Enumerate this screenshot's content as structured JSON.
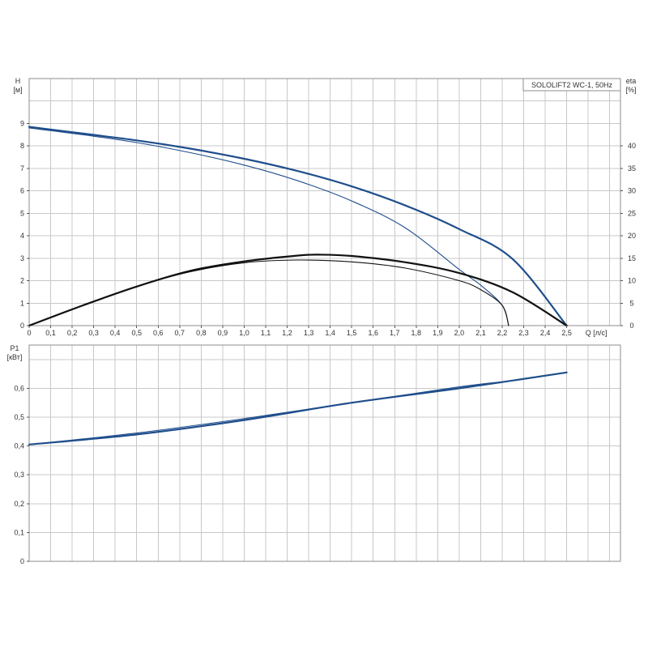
{
  "chart_data": [
    {
      "type": "line",
      "title": "SOLOLIFT2 WC-1, 50Hz",
      "xlabel": "Q [л/с]",
      "ylabel_left": "H\n[м]",
      "ylabel_right": "eta\n[%]",
      "xlim": [
        0,
        2.75
      ],
      "ylim_left": [
        0,
        11
      ],
      "ylim_right": [
        0,
        55
      ],
      "grid": true,
      "x_ticks": [
        "0",
        "0,1",
        "0,2",
        "0,3",
        "0,4",
        "0,5",
        "0,6",
        "0,7",
        "0,8",
        "0,9",
        "1,0",
        "1,1",
        "1,2",
        "1,3",
        "1,4",
        "1,5",
        "1,6",
        "1,7",
        "1,8",
        "1,9",
        "2,0",
        "2,1",
        "2,2",
        "2,3",
        "2,4",
        "2,5"
      ],
      "y_ticks_left": [
        "0",
        "1",
        "2",
        "3",
        "4",
        "5",
        "6",
        "7",
        "8",
        "9"
      ],
      "y_ticks_right": [
        "0",
        "5",
        "10",
        "15",
        "20",
        "25",
        "30",
        "35",
        "40"
      ],
      "series": [
        {
          "axis": "left",
          "color": "#1f4e8c",
          "width": 2.2,
          "x": [
            0,
            0.25,
            0.5,
            0.75,
            1.0,
            1.25,
            1.5,
            1.75,
            2.0,
            2.25,
            2.5
          ],
          "y": [
            8.85,
            8.55,
            8.25,
            7.88,
            7.43,
            6.88,
            6.2,
            5.35,
            4.3,
            2.95,
            0
          ]
        },
        {
          "axis": "left",
          "color": "#1f4e8c",
          "width": 1.1,
          "x": [
            0,
            0.25,
            0.5,
            0.75,
            1.0,
            1.25,
            1.5,
            1.75,
            2.0,
            2.1,
            2.2,
            2.23
          ],
          "y": [
            8.8,
            8.5,
            8.15,
            7.7,
            7.15,
            6.45,
            5.55,
            4.35,
            2.5,
            1.8,
            0.9,
            0
          ]
        },
        {
          "axis": "right",
          "color": "#111111",
          "width": 2.2,
          "x": [
            0,
            0.25,
            0.5,
            0.75,
            1.0,
            1.25,
            1.35,
            1.5,
            1.75,
            2.0,
            2.25,
            2.5
          ],
          "y": [
            0,
            4.5,
            8.7,
            12.2,
            14.3,
            15.6,
            15.8,
            15.5,
            14.1,
            11.7,
            7.4,
            0
          ]
        },
        {
          "axis": "right",
          "color": "#111111",
          "width": 1.1,
          "x": [
            0,
            0.25,
            0.5,
            0.75,
            1.0,
            1.25,
            1.5,
            1.75,
            2.0,
            2.1,
            2.2,
            2.23
          ],
          "y": [
            0,
            4.5,
            8.7,
            12.0,
            14.0,
            14.6,
            14.2,
            12.8,
            10.0,
            8.0,
            4.5,
            0
          ]
        }
      ]
    },
    {
      "type": "line",
      "title": "",
      "xlabel": "",
      "ylabel": "P1\n[кВт]",
      "xlim": [
        0,
        2.75
      ],
      "ylim": [
        0,
        0.75
      ],
      "grid": true,
      "y_ticks": [
        "0",
        "0,1",
        "0,2",
        "0,3",
        "0,4",
        "0,5",
        "0,6"
      ],
      "series": [
        {
          "color": "#1f4e8c",
          "width": 2.2,
          "x": [
            0,
            0.5,
            1.0,
            1.5,
            2.0,
            2.5
          ],
          "y": [
            0.405,
            0.44,
            0.49,
            0.55,
            0.6,
            0.655
          ]
        },
        {
          "color": "#1f4e8c",
          "width": 1.1,
          "x": [
            0,
            0.5,
            1.0,
            1.5,
            2.0,
            2.23
          ],
          "y": [
            0.405,
            0.445,
            0.495,
            0.55,
            0.605,
            0.625
          ]
        }
      ]
    }
  ]
}
